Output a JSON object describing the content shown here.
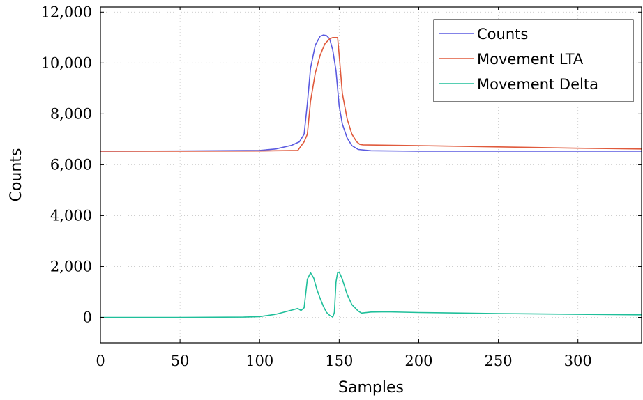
{
  "chart_data": {
    "type": "line",
    "xlabel": "Samples",
    "ylabel": "Counts",
    "xlim": [
      0,
      340
    ],
    "ylim": [
      -1000,
      12200
    ],
    "xticks": [
      0,
      50,
      100,
      150,
      200,
      250,
      300
    ],
    "xtick_labels": [
      "0",
      "50",
      "100",
      "150",
      "200",
      "250",
      "300"
    ],
    "yticks": [
      0,
      2000,
      4000,
      6000,
      8000,
      10000,
      12000
    ],
    "ytick_labels": [
      "0",
      "2,000",
      "4,000",
      "6,000",
      "8,000",
      "10,000",
      "12,000"
    ],
    "grid": true,
    "legend_position": "top-right",
    "series": [
      {
        "name": "Counts",
        "color": "#5a5ae0",
        "x": [
          0,
          50,
          100,
          110,
          120,
          125,
          128,
          130,
          132,
          135,
          138,
          140,
          142,
          144,
          146,
          148,
          150,
          152,
          155,
          158,
          162,
          170,
          200,
          250,
          300,
          340
        ],
        "y": [
          6530,
          6540,
          6560,
          6620,
          6760,
          6900,
          7200,
          8400,
          9800,
          10700,
          11050,
          11100,
          11080,
          10950,
          10500,
          9700,
          8300,
          7600,
          7050,
          6750,
          6600,
          6550,
          6530,
          6530,
          6530,
          6530
        ]
      },
      {
        "name": "Movement LTA",
        "color": "#e05a3c",
        "x": [
          0,
          50,
          100,
          110,
          124,
          128,
          130,
          132,
          135,
          138,
          141,
          144,
          146,
          147,
          148,
          149,
          150,
          152,
          155,
          158,
          161,
          163,
          165,
          200,
          250,
          300,
          340
        ],
        "y": [
          6530,
          6530,
          6540,
          6550,
          6560,
          6900,
          7200,
          8500,
          9600,
          10300,
          10750,
          10950,
          11000,
          11000,
          11000,
          11000,
          10300,
          8800,
          7800,
          7200,
          6900,
          6800,
          6780,
          6750,
          6700,
          6650,
          6620
        ]
      },
      {
        "name": "Movement Delta",
        "color": "#1fbf9a",
        "x": [
          0,
          50,
          90,
          100,
          110,
          118,
          124,
          126,
          128,
          130,
          132,
          134,
          136,
          138,
          140,
          142,
          144,
          146,
          147,
          148,
          149,
          150,
          152,
          155,
          158,
          162,
          164,
          170,
          180,
          200,
          250,
          300,
          340
        ],
        "y": [
          0,
          0,
          10,
          30,
          120,
          250,
          350,
          270,
          380,
          1500,
          1750,
          1550,
          1100,
          750,
          450,
          200,
          80,
          10,
          200,
          1400,
          1750,
          1780,
          1500,
          900,
          500,
          250,
          170,
          210,
          220,
          190,
          150,
          120,
          100
        ]
      }
    ]
  }
}
